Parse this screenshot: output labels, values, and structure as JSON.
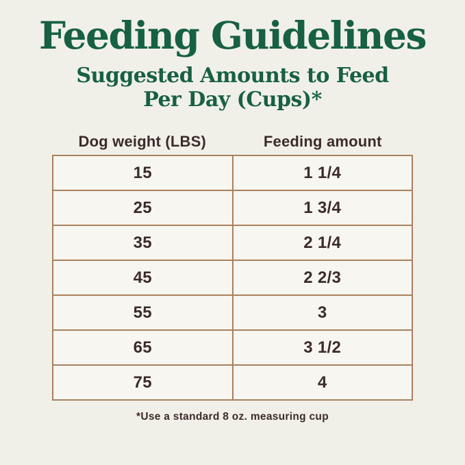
{
  "page": {
    "title": "Feeding Guidelines",
    "subtitle_line1": "Suggested Amounts to Feed",
    "subtitle_line2": "Per Day (Cups)*",
    "footnote": "*Use a standard 8 oz. measuring cup"
  },
  "chart_data": {
    "type": "table",
    "title": "Feeding Guidelines",
    "subtitle": "Suggested Amounts to Feed Per Day (Cups)*",
    "columns": [
      "Dog weight (LBS)",
      "Feeding amount"
    ],
    "rows": [
      {
        "weight": "15",
        "amount": "1 1/4"
      },
      {
        "weight": "25",
        "amount": "1 3/4"
      },
      {
        "weight": "35",
        "amount": "2 1/4"
      },
      {
        "weight": "45",
        "amount": "2 2/3"
      },
      {
        "weight": "55",
        "amount": "3"
      },
      {
        "weight": "65",
        "amount": "3 1/2"
      },
      {
        "weight": "75",
        "amount": "4"
      }
    ],
    "footnote": "*Use a standard 8 oz. measuring cup"
  },
  "colors": {
    "heading_green": "#176044",
    "text_brown": "#3C2B27",
    "border_tan": "#A9805E",
    "page_background": "#F1F0E8",
    "cell_background": "#F7F6F0"
  }
}
